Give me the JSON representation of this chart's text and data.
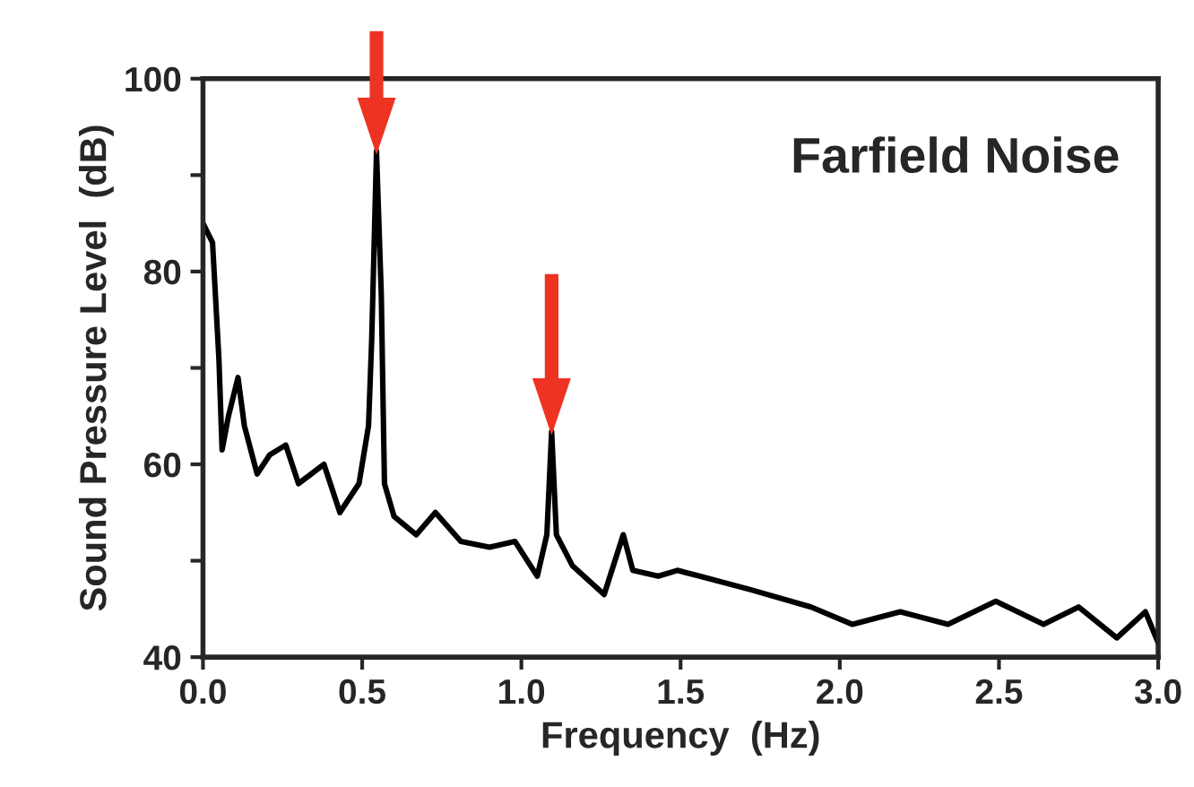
{
  "chart_data": {
    "type": "line",
    "title": "Farfield Noise",
    "xlabel": "Frequency  (Hz)",
    "ylabel": "Sound Pressure Level  (dB)",
    "xlim": [
      0,
      3.0
    ],
    "ylim": [
      40,
      100
    ],
    "xticks": [
      {
        "value": 0,
        "label": "0.0"
      },
      0.5,
      {
        "value": 1,
        "label": "1.0"
      },
      1.5,
      {
        "value": 2,
        "label": "2.0"
      },
      2.5,
      {
        "value": 3,
        "label": "3.0"
      }
    ],
    "yticks": [
      40,
      {
        "value": 50,
        "label": null
      },
      60,
      {
        "value": 70,
        "label": null
      },
      80,
      {
        "value": 90,
        "label": null
      },
      100
    ],
    "grid": false,
    "legend": false,
    "series": [
      {
        "color": "#000000",
        "x": [
          0,
          0.03,
          0.05,
          0.06,
          0.08,
          0.11,
          0.13,
          0.17,
          0.21,
          0.26,
          0.3,
          0.38,
          0.43,
          0.49,
          0.52,
          0.53,
          0.545,
          0.56,
          0.57,
          0.6,
          0.67,
          0.73,
          0.81,
          0.9,
          0.98,
          1.05,
          1.08,
          1.095,
          1.11,
          1.16,
          1.26,
          1.32,
          1.35,
          1.43,
          1.49,
          1.56,
          1.72,
          1.91,
          2.04,
          2.19,
          2.34,
          2.49,
          2.64,
          2.75,
          2.87,
          2.96,
          3.0
        ],
        "values": [
          85,
          83,
          71,
          61.5,
          65,
          69,
          64,
          59,
          61,
          62,
          58,
          60,
          55,
          58,
          64,
          73,
          92.5,
          77.6,
          58,
          54.6,
          52.7,
          55,
          52,
          51.4,
          52,
          48.4,
          52.7,
          63.4,
          52.7,
          49.5,
          46.5,
          52.7,
          49,
          48.4,
          49,
          48.4,
          47,
          45.2,
          43.4,
          44.7,
          43.4,
          45.8,
          43.4,
          45.2,
          42,
          44.7,
          41.5
        ]
      }
    ]
  }
}
